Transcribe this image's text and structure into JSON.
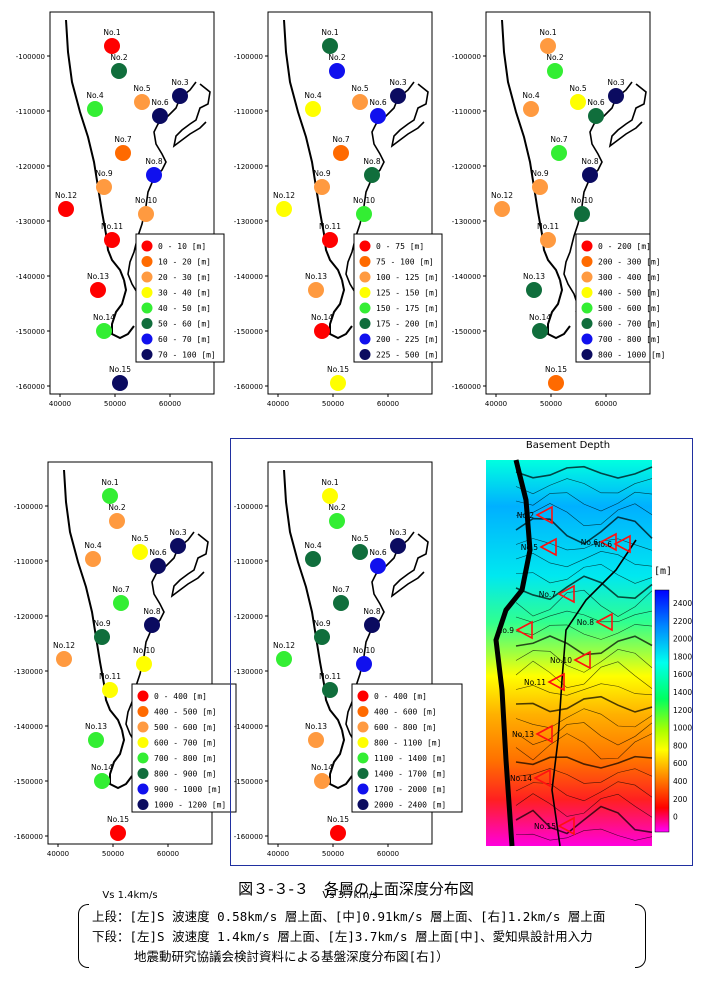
{
  "caption": {
    "title": "図３-３-３　各層の上面深度分布図",
    "line1": "上段：[左]S 波速度 0.58km/s 層上面、[中]0.91km/s 層上面、[右]1.2km/s 層上面",
    "line2": "下段：[左]S 波速度 1.4km/s 層上面、[左]3.7km/s 層上面[中]、愛知県設計用入力",
    "line3": "地震動研究協議会検討資料による基盤深度分布図[右]）"
  },
  "y_ticks": [
    "-100000",
    "-110000",
    "-120000",
    "-130000",
    "-140000",
    "-150000",
    "-160000"
  ],
  "x_ticks": [
    "40000",
    "50000",
    "60000"
  ],
  "stations": [
    {
      "label": "No.1"
    },
    {
      "label": "No.2"
    },
    {
      "label": "No.3"
    },
    {
      "label": "No.4"
    },
    {
      "label": "No.5"
    },
    {
      "label": "No.6"
    },
    {
      "label": "No.7"
    },
    {
      "label": "No.8"
    },
    {
      "label": "No.9"
    },
    {
      "label": "No.10"
    },
    {
      "label": "No.11"
    },
    {
      "label": "No.12"
    },
    {
      "label": "No.13"
    },
    {
      "label": "No.14"
    },
    {
      "label": "No.15"
    }
  ],
  "colors": [
    "#ff0000",
    "#ff6a00",
    "#ff9a40",
    "#ffff00",
    "#33ee33",
    "#106e3c",
    "#1010ee",
    "#0b0b60"
  ],
  "maps": [
    {
      "title": "",
      "legend": [
        "0 - 10 [m]",
        "10 - 20 [m]",
        "20 - 30 [m]",
        "30 - 40 [m]",
        "40 - 50 [m]",
        "50 - 60 [m]",
        "60 - 70 [m]",
        "70 - 100 [m]"
      ],
      "classes": [
        0,
        5,
        7,
        4,
        2,
        7,
        1,
        6,
        2,
        2,
        0,
        0,
        0,
        4,
        7
      ]
    },
    {
      "title": "",
      "legend": [
        "0 - 75 [m]",
        "75 - 100 [m]",
        "100 - 125 [m]",
        "125 - 150 [m]",
        "150 - 175 [m]",
        "175 - 200 [m]",
        "200 - 225 [m]",
        "225 - 500 [m]"
      ],
      "classes": [
        5,
        6,
        7,
        3,
        2,
        6,
        1,
        5,
        2,
        4,
        0,
        3,
        2,
        0,
        3
      ]
    },
    {
      "title": "",
      "legend": [
        "0 - 200 [m]",
        "200 - 300 [m]",
        "300 - 400 [m]",
        "400 - 500 [m]",
        "500 - 600 [m]",
        "600 - 700 [m]",
        "700 - 800 [m]",
        "800 - 1000 [m]"
      ],
      "classes": [
        2,
        4,
        7,
        2,
        3,
        5,
        4,
        7,
        2,
        5,
        2,
        2,
        5,
        5,
        1
      ]
    },
    {
      "title": "Vs 1.4km/s",
      "legend": [
        "0 - 400 [m]",
        "400 - 500 [m]",
        "500 - 600 [m]",
        "600 - 700 [m]",
        "700 - 800 [m]",
        "800 - 900 [m]",
        "900 - 1000 [m]",
        "1000 - 1200 [m]"
      ],
      "classes": [
        4,
        2,
        7,
        2,
        3,
        7,
        4,
        7,
        5,
        3,
        3,
        2,
        4,
        4,
        0
      ]
    },
    {
      "title": "Vs 3.7km/s",
      "legend": [
        "0 - 400 [m]",
        "400 - 600 [m]",
        "600 - 800 [m]",
        "800 - 1100 [m]",
        "1100 - 1400 [m]",
        "1400 - 1700 [m]",
        "1700 - 2000 [m]",
        "2000 - 2400 [m]"
      ],
      "classes": [
        3,
        4,
        7,
        5,
        5,
        6,
        5,
        7,
        5,
        6,
        5,
        4,
        2,
        2,
        0
      ]
    }
  ],
  "basement": {
    "title": "Basement Depth",
    "unit": "[m]",
    "scale": [
      "2400",
      "2200",
      "2000",
      "1800",
      "1600",
      "1400",
      "1200",
      "1000",
      "800",
      "600",
      "400",
      "200",
      "0"
    ],
    "stations": [
      "No.2",
      "No.5",
      "No.6",
      "No.6",
      "No.7",
      "No.8",
      "No.9",
      "No.10",
      "No.11",
      "No.13",
      "No.14",
      "No.15"
    ]
  }
}
